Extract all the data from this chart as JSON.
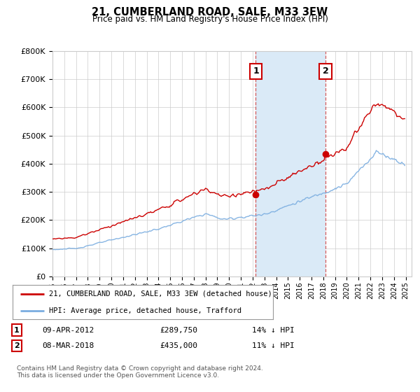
{
  "title": "21, CUMBERLAND ROAD, SALE, M33 3EW",
  "subtitle": "Price paid vs. HM Land Registry's House Price Index (HPI)",
  "ylim": [
    0,
    800000
  ],
  "yticks": [
    0,
    100000,
    200000,
    300000,
    400000,
    500000,
    600000,
    700000,
    800000
  ],
  "ytick_labels": [
    "£0",
    "£100K",
    "£200K",
    "£300K",
    "£400K",
    "£500K",
    "£600K",
    "£700K",
    "£800K"
  ],
  "xlim_start": 1995.0,
  "xlim_end": 2025.5,
  "hpi_color": "#7aade0",
  "price_color": "#cc0000",
  "sale1_year": 2012.27,
  "sale1_price": 289750,
  "sale2_year": 2018.18,
  "sale2_price": 435000,
  "sale1_label": "1",
  "sale2_label": "2",
  "legend_line1": "21, CUMBERLAND ROAD, SALE, M33 3EW (detached house)",
  "legend_line2": "HPI: Average price, detached house, Trafford",
  "table_row1_num": "1",
  "table_row1_date": "09-APR-2012",
  "table_row1_price": "£289,750",
  "table_row1_hpi": "14% ↓ HPI",
  "table_row2_num": "2",
  "table_row2_date": "08-MAR-2018",
  "table_row2_price": "£435,000",
  "table_row2_hpi": "11% ↓ HPI",
  "footer": "Contains HM Land Registry data © Crown copyright and database right 2024.\nThis data is licensed under the Open Government Licence v3.0.",
  "bg_color": "#ffffff",
  "plot_bg_color": "#ffffff",
  "grid_color": "#cccccc",
  "shade_color": "#daeaf7"
}
